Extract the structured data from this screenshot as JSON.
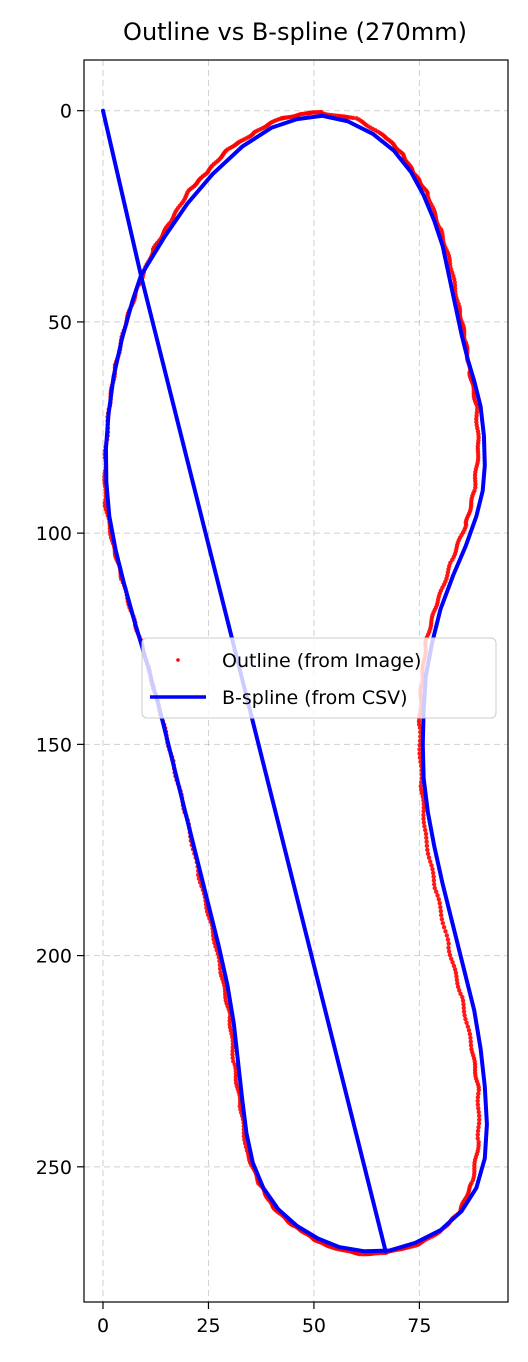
{
  "chart_data": {
    "type": "scatter",
    "title": "Outline vs B-spline (270mm)",
    "xlabel": "",
    "ylabel": "",
    "xlim": [
      -4.5,
      96
    ],
    "ylim": [
      282,
      -12
    ],
    "y_inverted": true,
    "grid": true,
    "legend_placement": "center-right",
    "x_ticks": [
      0,
      25,
      50,
      75
    ],
    "y_ticks": [
      0,
      50,
      100,
      150,
      200,
      250
    ],
    "series": [
      {
        "name": "Outline (from Image)",
        "kind": "scatter",
        "color": "#ff0000",
        "points": [
          [
            52,
            0.5
          ],
          [
            60,
            2
          ],
          [
            67,
            6
          ],
          [
            71,
            10.5
          ],
          [
            74,
            15
          ],
          [
            77,
            20
          ],
          [
            80,
            28
          ],
          [
            82.5,
            37
          ],
          [
            84.5,
            47
          ],
          [
            86,
            55
          ],
          [
            87,
            62
          ],
          [
            88.5,
            70
          ],
          [
            89,
            80
          ],
          [
            88,
            90
          ],
          [
            86,
            98
          ],
          [
            82.5,
            107
          ],
          [
            79,
            117
          ],
          [
            76.5,
            126
          ],
          [
            75.5,
            136
          ],
          [
            75,
            146
          ],
          [
            75.5,
            160
          ],
          [
            76.5,
            172
          ],
          [
            79,
            185
          ],
          [
            82,
            198
          ],
          [
            85,
            210
          ],
          [
            87.5,
            222
          ],
          [
            89,
            232
          ],
          [
            89,
            244
          ],
          [
            87.5,
            254
          ],
          [
            84.5,
            260.5
          ],
          [
            80,
            265.5
          ],
          [
            74,
            268.5
          ],
          [
            67,
            270.5
          ],
          [
            61,
            270.5
          ],
          [
            55,
            269.5
          ],
          [
            50,
            267
          ],
          [
            45,
            264
          ],
          [
            40,
            259
          ],
          [
            37,
            254
          ],
          [
            34,
            246
          ],
          [
            32.5,
            235
          ],
          [
            31,
            225
          ],
          [
            30,
            214
          ],
          [
            28,
            204
          ],
          [
            25.5,
            192
          ],
          [
            22.5,
            180
          ],
          [
            19.5,
            166
          ],
          [
            16.5,
            154
          ],
          [
            13.5,
            142
          ],
          [
            10.5,
            131
          ],
          [
            7.5,
            121
          ],
          [
            4.5,
            111
          ],
          [
            2.5,
            103
          ],
          [
            0.5,
            93
          ],
          [
            0.5,
            82
          ],
          [
            1.5,
            70
          ],
          [
            3,
            60
          ],
          [
            5.5,
            50
          ],
          [
            8.5,
            41
          ],
          [
            12,
            33
          ],
          [
            16,
            26
          ],
          [
            20.5,
            19
          ],
          [
            25,
            14
          ],
          [
            30,
            9
          ],
          [
            36,
            5
          ],
          [
            42,
            2
          ],
          [
            47,
            0.7
          ],
          [
            52,
            0.5
          ]
        ]
      },
      {
        "name": "B-spline (from CSV)",
        "kind": "line",
        "color": "#0000ff",
        "points": [
          [
            0,
            0
          ],
          [
            9,
            39
          ],
          [
            14.5,
            30
          ],
          [
            20,
            22
          ],
          [
            26,
            15
          ],
          [
            33,
            8.5
          ],
          [
            40,
            4
          ],
          [
            46,
            2
          ],
          [
            52,
            1.2
          ],
          [
            58,
            2.5
          ],
          [
            64,
            5.5
          ],
          [
            69,
            9.5
          ],
          [
            73,
            14.5
          ],
          [
            76,
            20
          ],
          [
            78.5,
            26
          ],
          [
            80.5,
            32
          ],
          [
            82,
            39
          ],
          [
            83.5,
            46
          ],
          [
            85,
            53
          ],
          [
            86.5,
            59
          ],
          [
            88,
            64
          ],
          [
            89.5,
            70
          ],
          [
            90.3,
            77
          ],
          [
            90.5,
            84
          ],
          [
            90,
            90
          ],
          [
            88.5,
            96
          ],
          [
            86,
            103
          ],
          [
            83,
            110
          ],
          [
            80,
            118
          ],
          [
            78,
            126
          ],
          [
            76.5,
            134
          ],
          [
            76,
            142
          ],
          [
            75.8,
            150
          ],
          [
            76,
            158
          ],
          [
            77,
            166
          ],
          [
            78.5,
            174
          ],
          [
            80.5,
            183
          ],
          [
            83,
            193
          ],
          [
            85.5,
            203
          ],
          [
            88,
            213
          ],
          [
            89.5,
            222
          ],
          [
            90.5,
            231
          ],
          [
            91,
            240
          ],
          [
            90.5,
            248
          ],
          [
            88.5,
            255
          ],
          [
            85,
            260.5
          ],
          [
            80,
            265
          ],
          [
            74,
            268
          ],
          [
            68,
            269.8
          ],
          [
            62,
            270
          ],
          [
            56,
            269
          ],
          [
            51,
            267
          ],
          [
            46,
            264
          ],
          [
            41.5,
            260
          ],
          [
            38,
            255
          ],
          [
            35.5,
            249
          ],
          [
            34,
            242
          ],
          [
            33,
            234
          ],
          [
            32,
            225
          ],
          [
            31,
            216
          ],
          [
            29.5,
            207
          ],
          [
            27.5,
            198
          ],
          [
            25,
            188
          ],
          [
            22.5,
            178
          ],
          [
            19.5,
            166
          ],
          [
            16.5,
            154
          ],
          [
            13.5,
            142
          ],
          [
            10.5,
            131
          ],
          [
            7.5,
            121
          ],
          [
            5,
            112
          ],
          [
            3,
            104
          ],
          [
            1.5,
            96
          ],
          [
            0.8,
            88
          ],
          [
            0.7,
            80
          ],
          [
            1.3,
            72
          ],
          [
            2.5,
            63
          ],
          [
            4.5,
            54
          ],
          [
            7,
            45
          ],
          [
            9,
            39
          ],
          [
            67,
            270
          ]
        ]
      }
    ]
  }
}
